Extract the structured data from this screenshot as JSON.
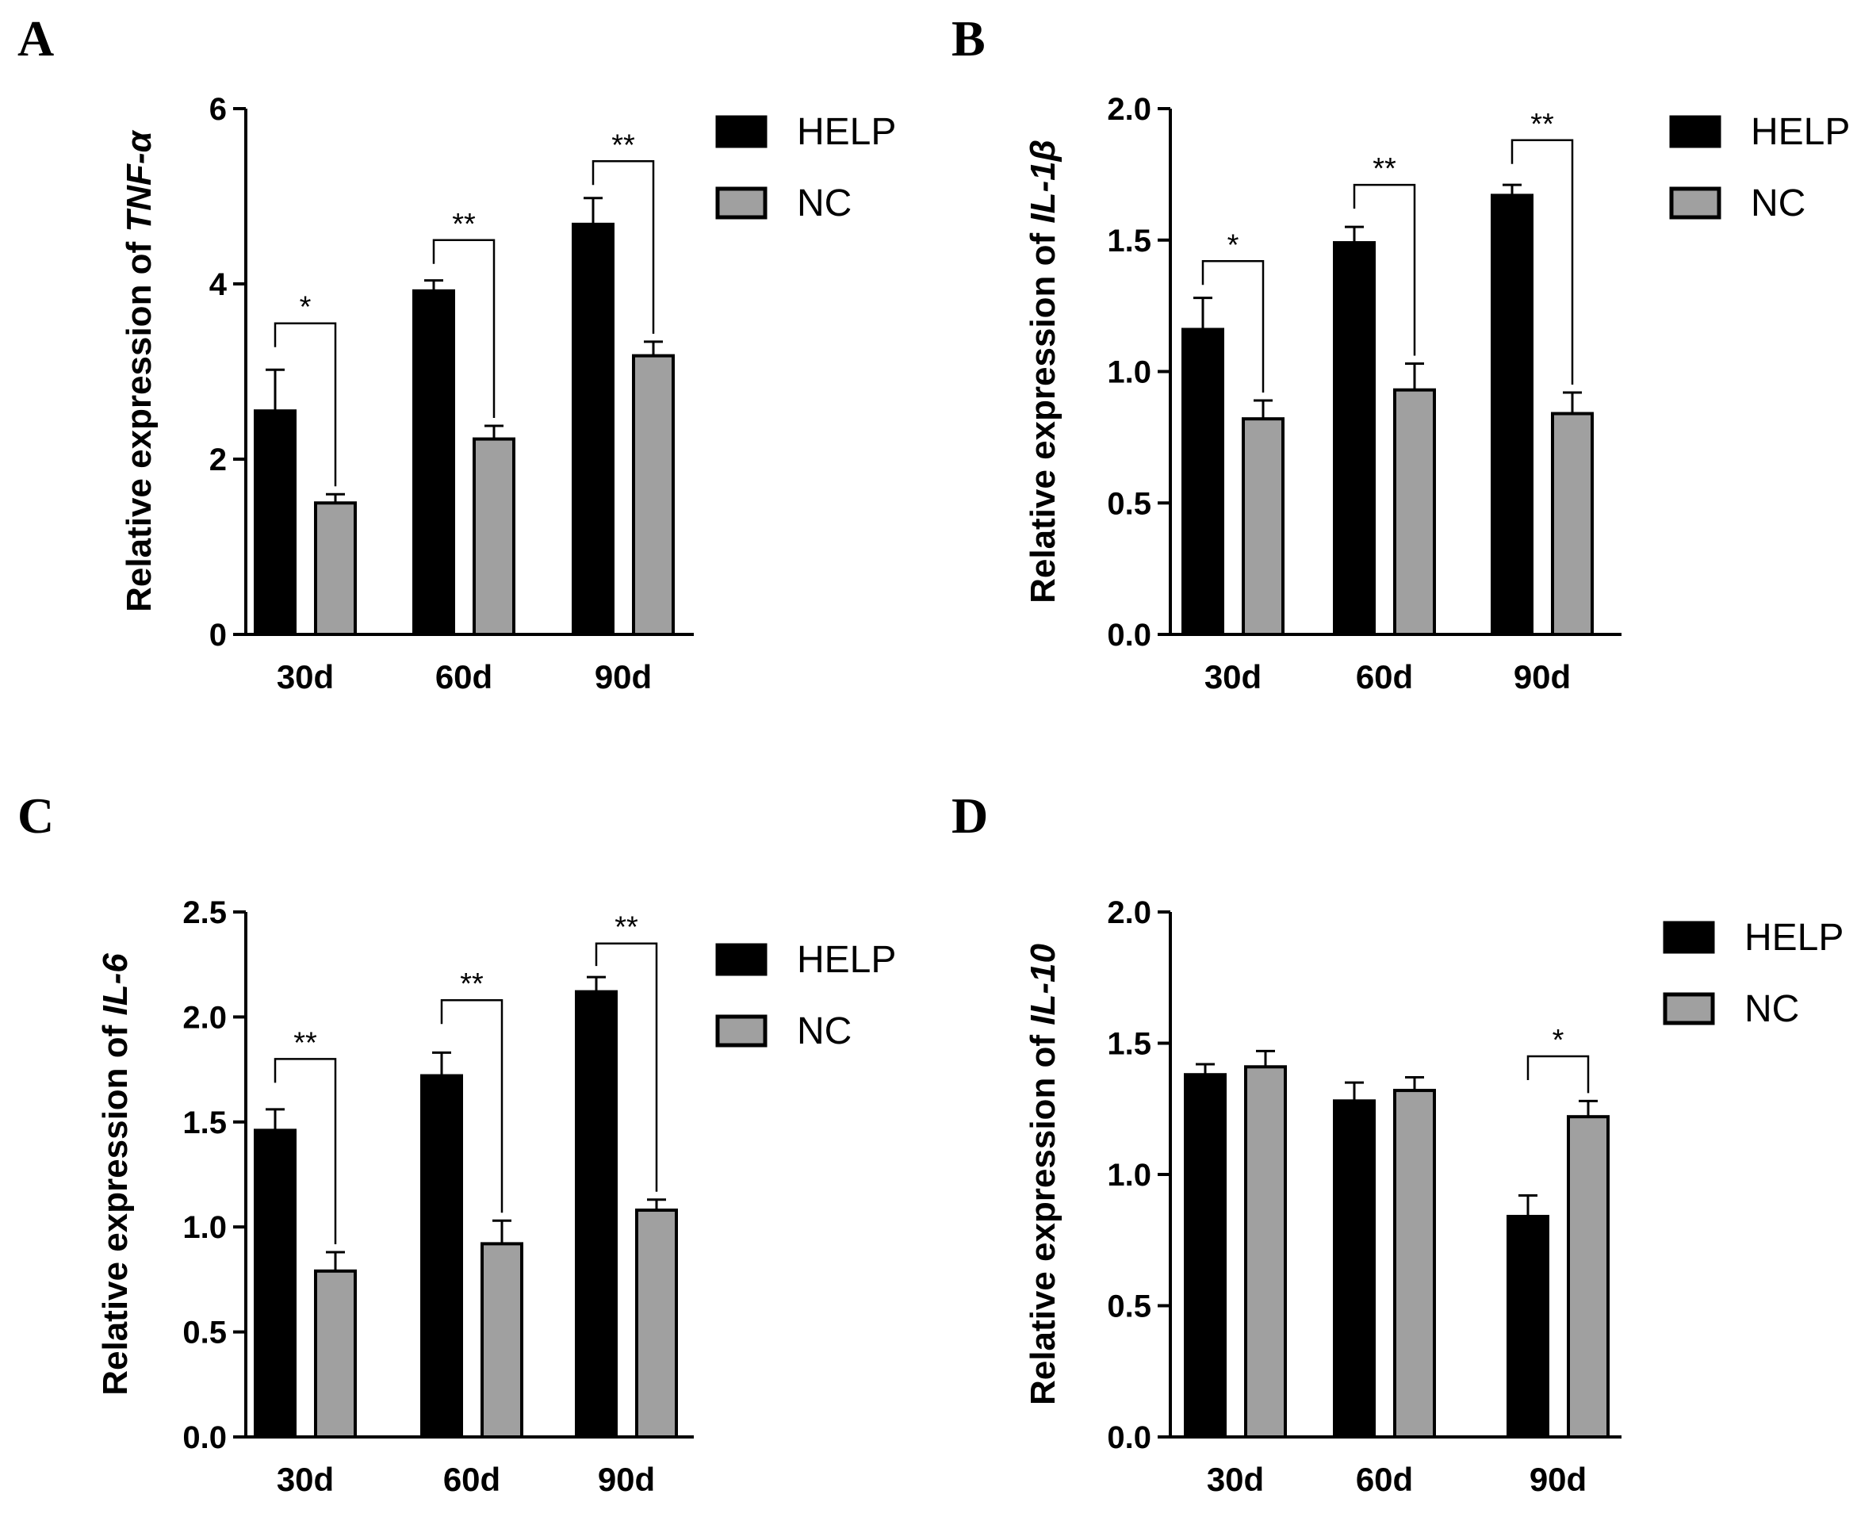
{
  "figure": {
    "panels": [
      "A",
      "B",
      "C",
      "D"
    ]
  },
  "colors": {
    "HELP": "#000000",
    "NC": "#a0a0a0",
    "axis": "#000000"
  },
  "chart_data": [
    {
      "panel": "A",
      "type": "bar",
      "categories": [
        "30d",
        "60d",
        "90d"
      ],
      "series": [
        {
          "name": "HELP",
          "values": [
            2.55,
            3.92,
            4.68
          ],
          "errors": [
            0.47,
            0.12,
            0.3
          ]
        },
        {
          "name": "NC",
          "values": [
            1.5,
            2.23,
            3.18
          ],
          "errors": [
            0.1,
            0.15,
            0.16
          ]
        }
      ],
      "ylabel_prefix": "Relative expression of ",
      "ylabel_gene": "TNF-α",
      "ylim": [
        0,
        6
      ],
      "yticks": [
        0,
        2,
        4,
        6
      ],
      "ytick_labels": [
        "0",
        "2",
        "4",
        "6"
      ],
      "significance": [
        {
          "category": "30d",
          "label": "*",
          "y": 3.55
        },
        {
          "category": "60d",
          "label": "**",
          "y": 4.5
        },
        {
          "category": "90d",
          "label": "**",
          "y": 5.4
        }
      ],
      "legend": [
        "HELP",
        "NC"
      ],
      "legend_position": "top-right"
    },
    {
      "panel": "B",
      "type": "bar",
      "categories": [
        "30d",
        "60d",
        "90d"
      ],
      "series": [
        {
          "name": "HELP",
          "values": [
            1.16,
            1.49,
            1.67
          ],
          "errors": [
            0.12,
            0.06,
            0.04
          ]
        },
        {
          "name": "NC",
          "values": [
            0.82,
            0.93,
            0.84
          ],
          "errors": [
            0.07,
            0.1,
            0.08
          ]
        }
      ],
      "ylabel_prefix": "Relative expression of ",
      "ylabel_gene": "IL-1β",
      "ylim": [
        0,
        2.0
      ],
      "yticks": [
        0,
        0.5,
        1.0,
        1.5,
        2.0
      ],
      "ytick_labels": [
        "0.0",
        "0.5",
        "1.0",
        "1.5",
        "2.0"
      ],
      "significance": [
        {
          "category": "30d",
          "label": "*",
          "y": 1.42
        },
        {
          "category": "60d",
          "label": "**",
          "y": 1.71
        },
        {
          "category": "90d",
          "label": "**",
          "y": 1.88
        }
      ],
      "legend": [
        "HELP",
        "NC"
      ],
      "legend_position": "top-right"
    },
    {
      "panel": "C",
      "type": "bar",
      "categories": [
        "30d",
        "60d",
        "90d"
      ],
      "series": [
        {
          "name": "HELP",
          "values": [
            1.46,
            1.72,
            2.12
          ],
          "errors": [
            0.1,
            0.11,
            0.07
          ]
        },
        {
          "name": "NC",
          "values": [
            0.79,
            0.92,
            1.08
          ],
          "errors": [
            0.09,
            0.11,
            0.05
          ]
        }
      ],
      "ylabel_prefix": "Relative expression of ",
      "ylabel_gene": "IL-6",
      "ylim": [
        0,
        2.5
      ],
      "yticks": [
        0,
        0.5,
        1.0,
        1.5,
        2.0,
        2.5
      ],
      "ytick_labels": [
        "0.0",
        "0.5",
        "1.0",
        "1.5",
        "2.0",
        "2.5"
      ],
      "significance": [
        {
          "category": "30d",
          "label": "**",
          "y": 1.8
        },
        {
          "category": "60d",
          "label": "**",
          "y": 2.08
        },
        {
          "category": "90d",
          "label": "**",
          "y": 2.35
        }
      ],
      "legend": [
        "HELP",
        "NC"
      ],
      "legend_position": "top-right"
    },
    {
      "panel": "D",
      "type": "bar",
      "categories": [
        "30d",
        "60d",
        "90d"
      ],
      "series": [
        {
          "name": "HELP",
          "values": [
            1.38,
            1.28,
            0.84
          ],
          "errors": [
            0.04,
            0.07,
            0.08
          ]
        },
        {
          "name": "NC",
          "values": [
            1.41,
            1.32,
            1.22
          ],
          "errors": [
            0.06,
            0.05,
            0.06
          ]
        }
      ],
      "ylabel_prefix": "Relative expression of ",
      "ylabel_gene": "IL-10",
      "ylim": [
        0,
        2.0
      ],
      "yticks": [
        0,
        0.5,
        1.0,
        1.5,
        2.0
      ],
      "ytick_labels": [
        "0.0",
        "0.5",
        "1.0",
        "1.5",
        "2.0"
      ],
      "significance": [
        {
          "category": "90d",
          "label": "*",
          "y": 1.45
        }
      ],
      "legend": [
        "HELP",
        "NC"
      ],
      "legend_position": "top-right"
    }
  ]
}
